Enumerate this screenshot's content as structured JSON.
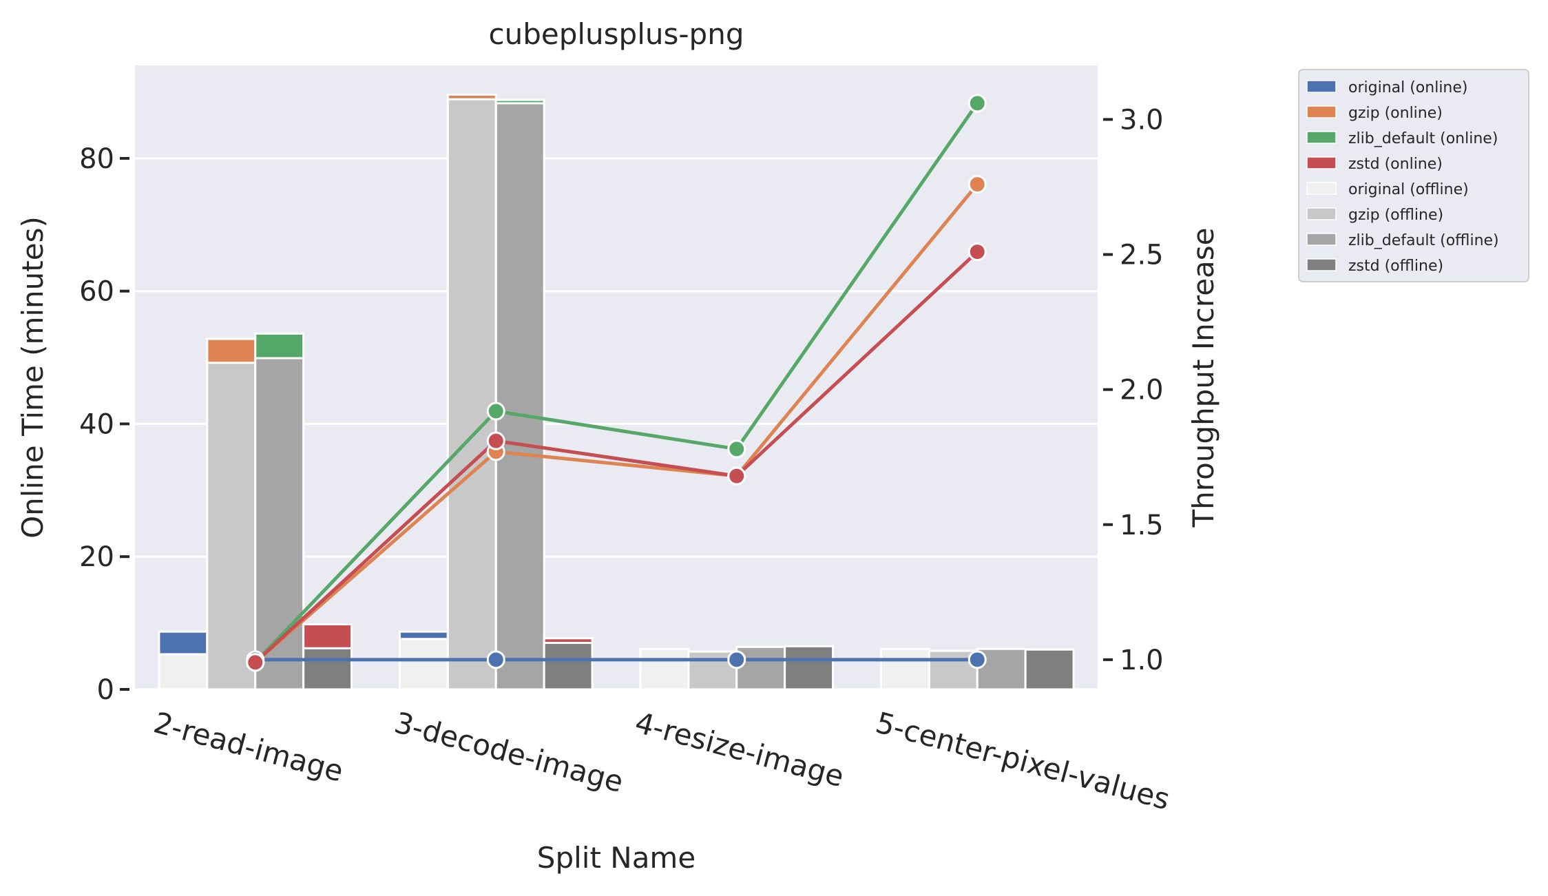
{
  "chart_data": {
    "type": "bar",
    "title": "cubeplusplus-png",
    "xlabel": "Split Name",
    "ylabel": "Online Time (minutes)",
    "y2label": "Throughput Increase",
    "categories": [
      "2-read-image",
      "3-decode-image",
      "4-resize-image",
      "5-center-pixel-values"
    ],
    "ylim": [
      0,
      94
    ],
    "yticks": [
      0,
      20,
      40,
      60,
      80
    ],
    "y2lim": [
      0.89,
      3.2
    ],
    "y2ticks": [
      1.0,
      1.5,
      2.0,
      2.5,
      3.0
    ],
    "y2ticklabels": [
      "1.0",
      "1.5",
      "2.0",
      "2.5",
      "3.0"
    ],
    "grid": true,
    "legend_position": "outside-top-right",
    "bar_series": [
      {
        "name": "original",
        "online_color": "#4c72b0",
        "offline_color": "#f0f0f0",
        "online": [
          8.7,
          8.7,
          5.5,
          5.5
        ],
        "offline": [
          5.3,
          7.6,
          6.1,
          6.1
        ]
      },
      {
        "name": "gzip",
        "online_color": "#dd8452",
        "offline_color": "#c8c8c8",
        "online": [
          52.8,
          89.6,
          5.3,
          5.5
        ],
        "offline": [
          49.2,
          88.9,
          5.7,
          5.8
        ]
      },
      {
        "name": "zlib_default",
        "online_color": "#55a868",
        "offline_color": "#a5a5a5",
        "online": [
          53.6,
          88.8,
          6.3,
          6.0
        ],
        "offline": [
          49.9,
          88.3,
          6.4,
          6.1
        ]
      },
      {
        "name": "zstd",
        "online_color": "#c44e52",
        "offline_color": "#7f7f7f",
        "online": [
          9.8,
          7.7,
          6.2,
          5.9
        ],
        "offline": [
          6.2,
          7.0,
          6.5,
          6.0
        ]
      }
    ],
    "line_series": [
      {
        "name": "original",
        "color": "#4c72b0",
        "values": [
          1.0,
          1.0,
          1.0,
          1.0
        ]
      },
      {
        "name": "gzip",
        "color": "#dd8452",
        "values": [
          0.99,
          1.77,
          1.68,
          2.76
        ]
      },
      {
        "name": "zlib_default",
        "color": "#55a868",
        "values": [
          0.99,
          1.92,
          1.78,
          3.06
        ]
      },
      {
        "name": "zstd",
        "color": "#c44e52",
        "values": [
          0.99,
          1.81,
          1.68,
          2.51
        ]
      }
    ],
    "legend": [
      {
        "label": "original (online)",
        "color": "#4c72b0"
      },
      {
        "label": "gzip (online)",
        "color": "#dd8452"
      },
      {
        "label": "zlib_default (online)",
        "color": "#55a868"
      },
      {
        "label": "zstd (online)",
        "color": "#c44e52"
      },
      {
        "label": "original (offline)",
        "color": "#f0f0f0"
      },
      {
        "label": "gzip (offline)",
        "color": "#c8c8c8"
      },
      {
        "label": "zlib_default (offline)",
        "color": "#a5a5a5"
      },
      {
        "label": "zstd (offline)",
        "color": "#7f7f7f"
      }
    ]
  }
}
